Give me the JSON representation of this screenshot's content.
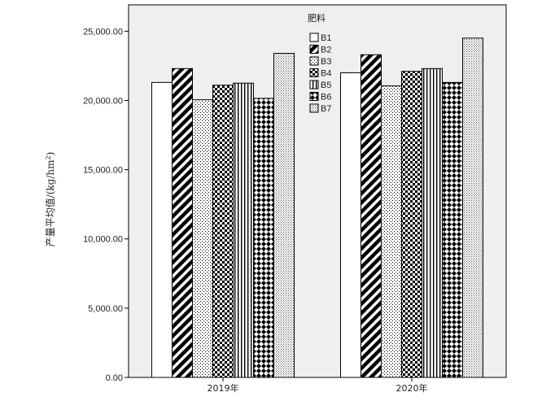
{
  "chart_data": {
    "type": "bar",
    "categories": [
      "2019年",
      "2020年"
    ],
    "series": [
      {
        "name": "B1",
        "values": [
          21300,
          22000
        ],
        "pattern": "solid-white"
      },
      {
        "name": "B2",
        "values": [
          22300,
          23300
        ],
        "pattern": "diagonal-thick"
      },
      {
        "name": "B3",
        "values": [
          20050,
          21050
        ],
        "pattern": "fine-dots"
      },
      {
        "name": "B4",
        "values": [
          21100,
          22100
        ],
        "pattern": "checker"
      },
      {
        "name": "B5",
        "values": [
          21250,
          22300
        ],
        "pattern": "vertical-lines"
      },
      {
        "name": "B6",
        "values": [
          20150,
          21300
        ],
        "pattern": "cross-hatch"
      },
      {
        "name": "B7",
        "values": [
          23400,
          24500
        ],
        "pattern": "dense-dots"
      }
    ],
    "ylabel": "产量平均值/(kg/hm",
    "ylabel_superscript": "2",
    "ylabel_close": ")",
    "ylim": [
      0,
      25000
    ],
    "yticks": [
      0,
      5000,
      10000,
      15000,
      20000,
      25000
    ],
    "ytick_labels": [
      "0.00",
      "5,000.00",
      "10,000.00",
      "15,000.00",
      "20,000.00",
      "25,000.00"
    ],
    "legend": {
      "title": "肥料",
      "placement": "top-center"
    },
    "background": "#efefef",
    "bar_border": "#000000"
  }
}
